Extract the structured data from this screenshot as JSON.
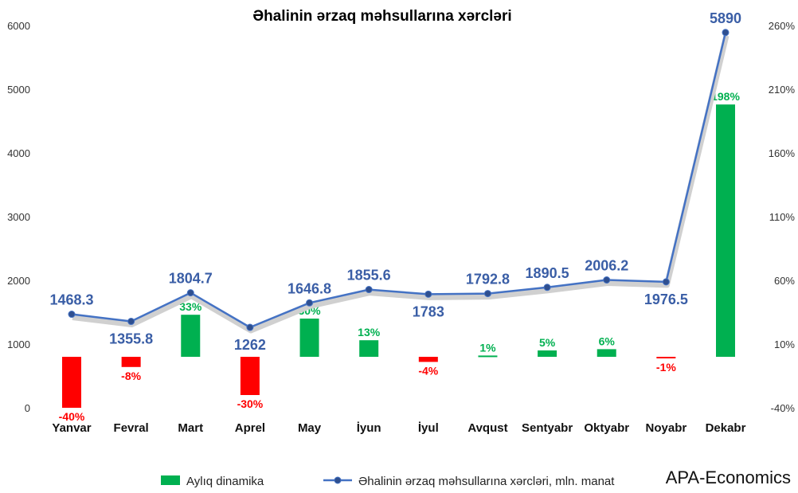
{
  "chart_data": {
    "type": "bar+line",
    "title": "Əhalinin ərzaq məhsullarına xərcləri",
    "categories": [
      "Yanvar",
      "Fevral",
      "Mart",
      "Aprel",
      "May",
      "İyun",
      "İyul",
      "Avqust",
      "Sentyabr",
      "Oktyabr",
      "Noyabr",
      "Dekabr"
    ],
    "line_series": {
      "name": "Əhalinin ərzaq məhsullarına xərcləri, mln. manat",
      "values": [
        1468.3,
        1355.8,
        1804.7,
        1262,
        1646.8,
        1855.6,
        1783,
        1792.8,
        1890.5,
        2006.2,
        1976.5,
        5890
      ],
      "labels": [
        "1468.3",
        "1355.8",
        "1804.7",
        "1262",
        "1646.8",
        "1855.6",
        "1783",
        "1792.8",
        "1890.5",
        "2006.2",
        "1976.5",
        "5890"
      ],
      "color": "#4472c4"
    },
    "bar_series": {
      "name": "Aylıq dinamika",
      "values": [
        -40,
        -8,
        33,
        -30,
        30,
        13,
        -4,
        1,
        5,
        6,
        -1,
        198
      ],
      "labels": [
        "-40%",
        "-8%",
        "33%",
        "-30%",
        "30%",
        "13%",
        "-4%",
        "1%",
        "5%",
        "6%",
        "-1%",
        "198%"
      ],
      "positive_color": "#00b050",
      "negative_color": "#ff0000"
    },
    "y_left": {
      "min": 0,
      "max": 6000,
      "ticks": [
        "0",
        "1000",
        "2000",
        "3000",
        "4000",
        "5000",
        "6000"
      ]
    },
    "y_right": {
      "min": -40,
      "max": 260,
      "ticks": [
        "-40%",
        "10%",
        "60%",
        "110%",
        "160%",
        "210%",
        "260%"
      ]
    },
    "grid": false,
    "legend": "bottom"
  },
  "brand": "APA-Economics"
}
